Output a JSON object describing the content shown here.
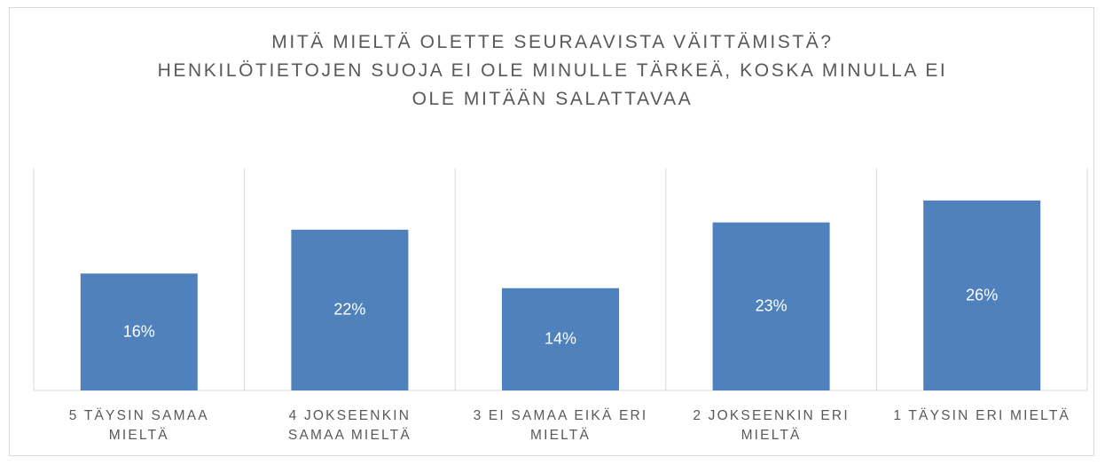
{
  "chart_data": {
    "type": "bar",
    "title": "MITÄ MIELTÄ OLETTE SEURAAVISTA VÄITTÄMISTÄ?",
    "subtitle": "HENKILÖTIETOJEN SUOJA EI OLE MINULLE TÄRKEÄ, KOSKA MINULLA EI OLE MITÄÄN SALATTAVAA",
    "categories": [
      "5 TÄYSIN SAMAA MIELTÄ",
      "4 JOKSEENKIN SAMAA MIELTÄ",
      "3 EI SAMAA EIKÄ ERI MIELTÄ",
      "2 JOKSEENKIN ERI MIELTÄ",
      "1 TÄYSIN ERI MIELTÄ"
    ],
    "values": [
      16,
      22,
      14,
      23,
      26
    ],
    "value_labels": [
      "16%",
      "22%",
      "14%",
      "23%",
      "26%"
    ],
    "color": "#4f81bd",
    "ylim": [
      0,
      30
    ]
  }
}
